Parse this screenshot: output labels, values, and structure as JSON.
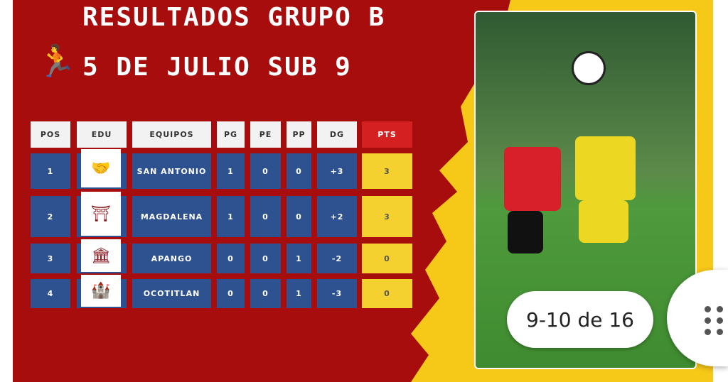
{
  "title_line1": "RESULTADOS GRUPO B",
  "title_line2": "5 DE JULIO SUB 9",
  "icon": "soccer-player-icon",
  "table": {
    "headers": [
      "POS",
      "EDU",
      "EQUIPOS",
      "PG",
      "PE",
      "PP",
      "DG",
      "PTS"
    ],
    "rows": [
      {
        "pos": "1",
        "team": "SAN ANTONIO",
        "pg": "1",
        "pe": "0",
        "pp": "0",
        "dg": "+3",
        "pts": "3"
      },
      {
        "pos": "2",
        "team": "MAGDALENA",
        "pg": "1",
        "pe": "0",
        "pp": "0",
        "dg": "+2",
        "pts": "3"
      },
      {
        "pos": "3",
        "team": "APANGO",
        "pg": "0",
        "pe": "0",
        "pp": "1",
        "dg": "-2",
        "pts": "0"
      },
      {
        "pos": "4",
        "team": "OCOTITLAN",
        "pg": "0",
        "pe": "0",
        "pp": "1",
        "dg": "-3",
        "pts": "0"
      }
    ]
  },
  "pager": "9-10 de 16",
  "colors": {
    "red": "#a80d0d",
    "yellow": "#f6c818",
    "blue": "#2e5290"
  }
}
